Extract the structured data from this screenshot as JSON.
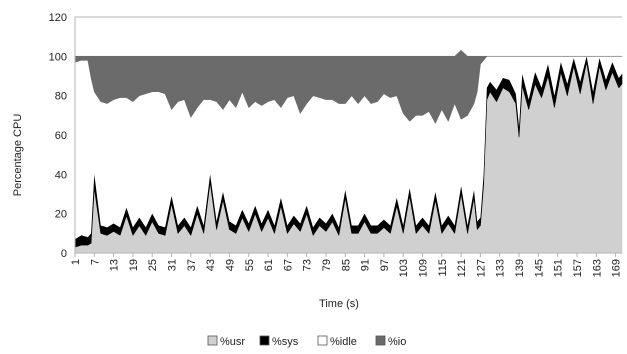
{
  "chart_data": {
    "type": "area",
    "stacked": true,
    "xlabel": "Time (s)",
    "ylabel": "Percentage CPU",
    "ylim": [
      0,
      120
    ],
    "yticks": [
      0,
      20,
      40,
      60,
      80,
      100,
      120
    ],
    "xlim": [
      1,
      171
    ],
    "xticks": [
      1,
      7,
      13,
      19,
      25,
      31,
      37,
      43,
      49,
      55,
      61,
      67,
      73,
      79,
      85,
      91,
      97,
      103,
      109,
      115,
      121,
      127,
      133,
      139,
      145,
      151,
      157,
      163,
      169
    ],
    "grid": "horizontal",
    "legend_position": "bottom",
    "colors": {
      "%usr": "#d0d0d0",
      "%sys": "#000000",
      "%idle": "#ffffff",
      "%io": "#6b6b6b"
    },
    "series": [
      {
        "name": "%usr",
        "x": [
          1,
          3,
          5,
          6,
          7,
          9,
          11,
          13,
          15,
          17,
          19,
          21,
          23,
          25,
          27,
          29,
          31,
          33,
          35,
          37,
          39,
          41,
          43,
          45,
          47,
          49,
          51,
          53,
          55,
          57,
          59,
          61,
          63,
          65,
          67,
          69,
          71,
          73,
          75,
          77,
          79,
          81,
          83,
          85,
          87,
          89,
          91,
          93,
          95,
          97,
          99,
          101,
          103,
          105,
          107,
          109,
          111,
          113,
          115,
          117,
          119,
          121,
          123,
          125,
          126,
          127,
          128,
          129,
          130,
          132,
          134,
          136,
          138,
          139,
          140,
          142,
          144,
          146,
          148,
          150,
          152,
          154,
          156,
          158,
          160,
          162,
          164,
          166,
          168,
          170,
          171
        ],
        "values": [
          3,
          4,
          4,
          5,
          33,
          10,
          9,
          11,
          9,
          19,
          9,
          14,
          9,
          16,
          10,
          9,
          25,
          10,
          14,
          9,
          20,
          10,
          36,
          12,
          27,
          12,
          10,
          18,
          11,
          20,
          11,
          18,
          10,
          24,
          10,
          15,
          11,
          20,
          9,
          14,
          11,
          16,
          9,
          28,
          10,
          10,
          16,
          10,
          10,
          13,
          10,
          24,
          10,
          29,
          10,
          14,
          10,
          27,
          10,
          15,
          10,
          30,
          10,
          28,
          12,
          14,
          35,
          78,
          82,
          77,
          84,
          82,
          76,
          59,
          85,
          73,
          86,
          79,
          90,
          74,
          92,
          80,
          95,
          81,
          97,
          76,
          95,
          83,
          92,
          84,
          86
        ]
      },
      {
        "name": "%sys",
        "x": [
          1,
          3,
          5,
          6,
          7,
          9,
          11,
          13,
          15,
          17,
          19,
          21,
          23,
          25,
          27,
          29,
          31,
          33,
          35,
          37,
          39,
          41,
          43,
          45,
          47,
          49,
          51,
          53,
          55,
          57,
          59,
          61,
          63,
          65,
          67,
          69,
          71,
          73,
          75,
          77,
          79,
          81,
          83,
          85,
          87,
          89,
          91,
          93,
          95,
          97,
          99,
          101,
          103,
          105,
          107,
          109,
          111,
          113,
          115,
          117,
          119,
          121,
          123,
          125,
          126,
          127,
          128,
          129,
          130,
          132,
          134,
          136,
          138,
          139,
          140,
          142,
          144,
          146,
          148,
          150,
          152,
          154,
          156,
          158,
          160,
          162,
          164,
          166,
          168,
          170,
          171
        ],
        "values": [
          4,
          5,
          4,
          5,
          7,
          4,
          4,
          4,
          4,
          4,
          4,
          4,
          4,
          4,
          4,
          4,
          4,
          4,
          4,
          4,
          4,
          4,
          4,
          4,
          4,
          4,
          4,
          4,
          4,
          4,
          4,
          4,
          4,
          4,
          4,
          4,
          4,
          4,
          4,
          4,
          4,
          4,
          4,
          4,
          4,
          4,
          4,
          4,
          4,
          4,
          4,
          4,
          4,
          4,
          4,
          4,
          4,
          4,
          4,
          4,
          4,
          4,
          4,
          4,
          4,
          4,
          5,
          6,
          5,
          6,
          5,
          6,
          5,
          5,
          6,
          5,
          6,
          5,
          6,
          6,
          5,
          6,
          4,
          6,
          3,
          6,
          4,
          5,
          5,
          5,
          5
        ]
      },
      {
        "name": "%idle",
        "x": [
          1,
          3,
          5,
          6,
          7,
          9,
          11,
          13,
          15,
          17,
          19,
          21,
          23,
          25,
          27,
          29,
          31,
          33,
          35,
          37,
          39,
          41,
          43,
          45,
          47,
          49,
          51,
          53,
          55,
          57,
          59,
          61,
          63,
          65,
          67,
          69,
          71,
          73,
          75,
          77,
          79,
          81,
          83,
          85,
          87,
          89,
          91,
          93,
          95,
          97,
          99,
          101,
          103,
          105,
          107,
          109,
          111,
          113,
          115,
          117,
          119,
          121,
          123,
          125,
          126,
          127,
          128,
          129,
          130,
          132,
          134,
          136,
          138,
          139,
          140,
          142,
          144,
          146,
          148,
          150,
          152,
          154,
          156,
          158,
          160,
          162,
          164,
          166,
          168,
          170,
          171
        ],
        "values": [
          90,
          89,
          90,
          79,
          42,
          63,
          63,
          63,
          66,
          56,
          64,
          62,
          68,
          62,
          68,
          68,
          44,
          63,
          60,
          56,
          50,
          64,
          38,
          61,
          42,
          62,
          60,
          60,
          59,
          53,
          60,
          55,
          64,
          46,
          65,
          61,
          56,
          52,
          67,
          61,
          63,
          58,
          63,
          44,
          66,
          62,
          60,
          62,
          63,
          64,
          65,
          52,
          57,
          34,
          56,
          52,
          58,
          35,
          59,
          48,
          62,
          34,
          56,
          44,
          66,
          78,
          58,
          16,
          13,
          17,
          11,
          12,
          19,
          36,
          9,
          22,
          8,
          16,
          4,
          20,
          3,
          14,
          1,
          13,
          0,
          18,
          1,
          12,
          3,
          11,
          9
        ]
      },
      {
        "name": "%io",
        "x": [
          1,
          3,
          5,
          6,
          7,
          9,
          11,
          13,
          15,
          17,
          19,
          21,
          23,
          25,
          27,
          29,
          31,
          33,
          35,
          37,
          39,
          41,
          43,
          45,
          47,
          49,
          51,
          53,
          55,
          57,
          59,
          61,
          63,
          65,
          67,
          69,
          71,
          73,
          75,
          77,
          79,
          81,
          83,
          85,
          87,
          89,
          91,
          93,
          95,
          97,
          99,
          101,
          103,
          105,
          107,
          109,
          111,
          113,
          115,
          117,
          119,
          121,
          123,
          125,
          126,
          127,
          128,
          129,
          130,
          132,
          134,
          136,
          138,
          139,
          140,
          142,
          144,
          146,
          148,
          150,
          152,
          154,
          156,
          158,
          160,
          162,
          164,
          166,
          168,
          170,
          171
        ],
        "values": [
          3,
          2,
          2,
          11,
          18,
          23,
          24,
          22,
          21,
          21,
          23,
          20,
          19,
          18,
          18,
          19,
          27,
          23,
          22,
          31,
          26,
          22,
          22,
          23,
          27,
          22,
          26,
          18,
          26,
          23,
          25,
          23,
          22,
          26,
          21,
          20,
          29,
          24,
          20,
          21,
          22,
          22,
          24,
          24,
          20,
          24,
          20,
          24,
          23,
          19,
          21,
          20,
          29,
          33,
          30,
          30,
          28,
          34,
          27,
          33,
          24,
          35,
          30,
          24,
          18,
          4,
          2,
          0,
          0,
          0,
          0,
          0,
          0,
          0,
          0,
          0,
          0,
          0,
          0,
          0,
          0,
          0,
          0,
          0,
          0,
          0,
          0,
          0,
          0,
          0,
          0
        ]
      }
    ],
    "legend": [
      "%usr",
      "%sys",
      "%idle",
      "%io"
    ]
  }
}
